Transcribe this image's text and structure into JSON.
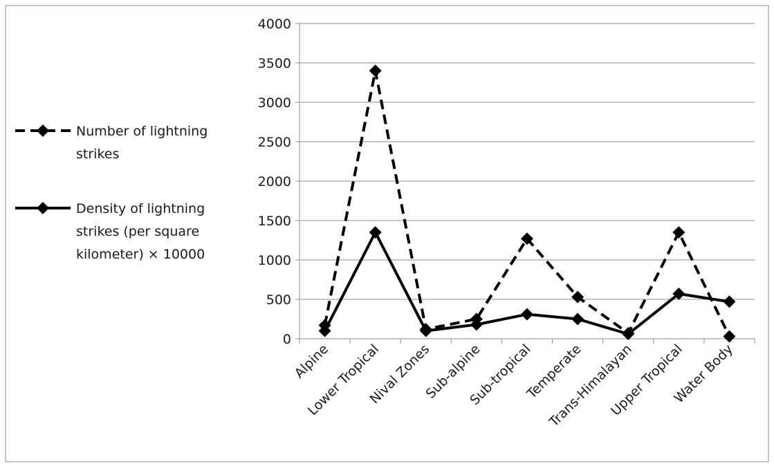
{
  "chart_data": {
    "type": "line",
    "title": "",
    "xlabel": "",
    "ylabel": "",
    "ylim": [
      0,
      4000
    ],
    "yticks": [
      0,
      500,
      1000,
      1500,
      2000,
      2500,
      3000,
      3500,
      4000
    ],
    "grid": "horizontal",
    "legend_position": "left",
    "categories": [
      "Alpine",
      "Lower Tropical",
      "Nival Zones",
      "Sub-alpine",
      "Sub-tropical",
      "Temperate",
      "Trans-Himalayan",
      "Upper Tropical",
      "Water Body"
    ],
    "series": [
      {
        "name": "Number of lightning strikes",
        "legend_lines": [
          "Number of lightning",
          "strikes"
        ],
        "style": "dashed",
        "marker": "diamond",
        "color": "#000000",
        "values": [
          170,
          3400,
          120,
          250,
          1270,
          530,
          70,
          1350,
          30
        ]
      },
      {
        "name": "Density of lightning strikes (per square kilometer) × 10000",
        "legend_lines": [
          "Density of lightning",
          "strikes (per square",
          "kilometer) × 10000"
        ],
        "style": "solid",
        "marker": "diamond",
        "color": "#000000",
        "values": [
          100,
          1350,
          100,
          180,
          310,
          250,
          60,
          570,
          470
        ]
      }
    ]
  }
}
